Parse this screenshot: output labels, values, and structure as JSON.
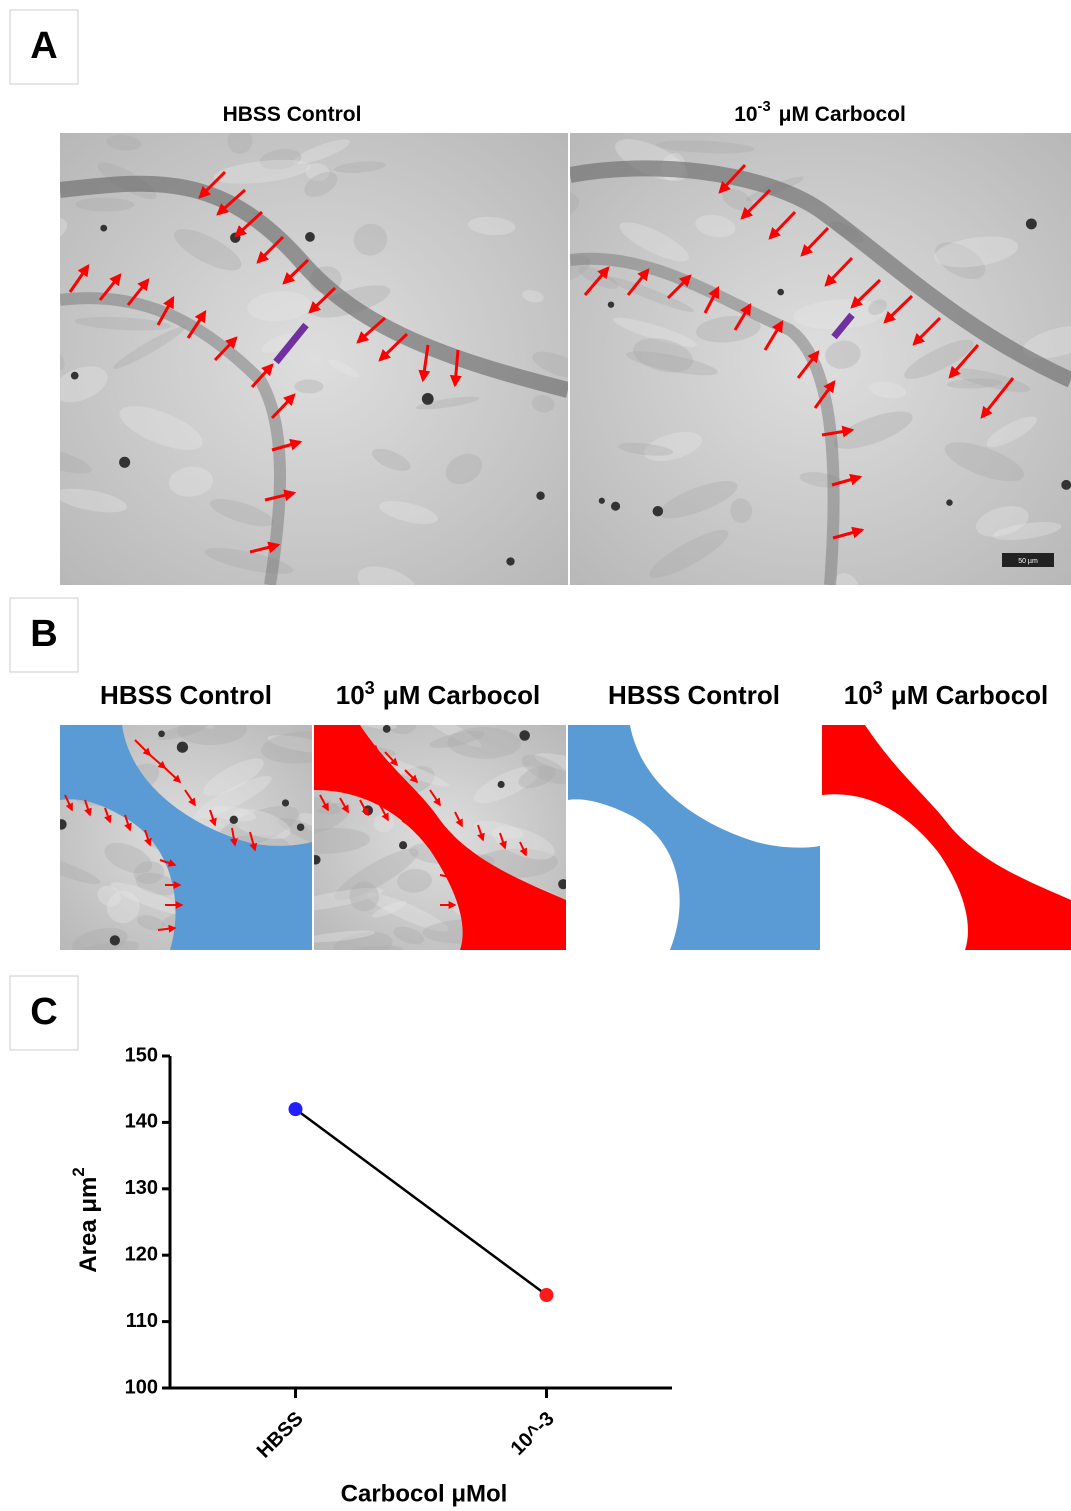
{
  "panels": [
    {
      "label": "A",
      "images": [
        {
          "title": {
            "text": "HBSS Control"
          }
        },
        {
          "title": {
            "base": "10",
            "sup": "-3",
            "rest": "μM Carbocol"
          }
        }
      ],
      "scale_bar": "50 µm"
    },
    {
      "label": "B",
      "images": [
        {
          "title": {
            "text": "HBSS Control"
          }
        },
        {
          "title": {
            "base": "10",
            "sup": "3",
            "rest": "μM Carbocol"
          }
        },
        {
          "title": {
            "text": "HBSS Control"
          }
        },
        {
          "title": {
            "base": "10",
            "sup": "3",
            "rest": "μM Carbocol"
          }
        }
      ]
    },
    {
      "label": "C"
    }
  ],
  "chart_data": {
    "type": "line",
    "categories": [
      "HBSS",
      "10^-3"
    ],
    "values": [
      142,
      114
    ],
    "color": "#000000",
    "marker_colors": [
      "#1f1fff",
      "#ff1a1a"
    ],
    "ylim": [
      100,
      150
    ],
    "yticks": [
      100,
      110,
      120,
      130,
      140,
      150
    ],
    "y_label": {
      "base": "Area μm",
      "sup": "2"
    },
    "x_label": "Carbocol μMol"
  }
}
